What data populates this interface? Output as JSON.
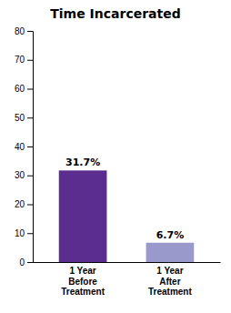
{
  "chart_data": {
    "type": "bar",
    "title": "Time Incarcerated",
    "categories": [
      "1 Year\nBefore\nTreatment",
      "1 Year\nAfter\nTreatment"
    ],
    "values": [
      31.7,
      6.7
    ],
    "value_labels": [
      "31.7%",
      "6.7%"
    ],
    "data_labels": true,
    "colors": [
      "#5b2d8e",
      "#9999cc"
    ],
    "ylim": [
      0,
      80
    ],
    "yticks": [
      0,
      10,
      20,
      30,
      40,
      50,
      60,
      70,
      80
    ],
    "grid": false
  }
}
